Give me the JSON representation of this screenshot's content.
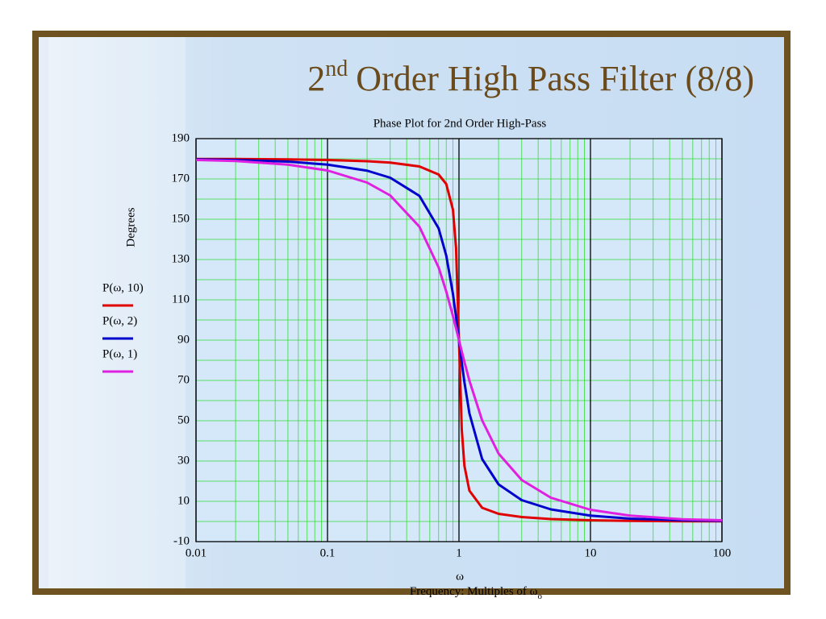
{
  "slide": {
    "title_base": "2",
    "title_sup": "nd",
    "title_rest": "Order High Pass Filter (8/8)"
  },
  "chart_data": {
    "type": "line",
    "title": "Phase Plot for 2nd Order High-Pass",
    "ylabel": "Degrees",
    "xlabel_symbol": "ω",
    "xlabel": "Frequency: Multiples of ω",
    "xlabel_sub": "o",
    "x": [
      0.01,
      0.02,
      0.05,
      0.1,
      0.2,
      0.3,
      0.5,
      0.7,
      0.8,
      0.9,
      0.95,
      1,
      1.05,
      1.1,
      1.2,
      1.5,
      2,
      3,
      5,
      10,
      20,
      50,
      100
    ],
    "series": [
      {
        "name": "P(ω, 10)",
        "color": "#e00000",
        "values": [
          179.9,
          179.9,
          179.7,
          179.4,
          178.8,
          178.1,
          176.2,
          172.2,
          167.5,
          154.7,
          135.7,
          90,
          45.7,
          27.6,
          15.3,
          6.8,
          3.8,
          2.2,
          1.2,
          0.6,
          0.3,
          0.1,
          0.1
        ]
      },
      {
        "name": "P(ω, 2)",
        "color": "#0000cc",
        "values": [
          179.7,
          179.4,
          178.6,
          177.1,
          174.1,
          170.6,
          161.6,
          145.5,
          132.0,
          112.9,
          101.6,
          90,
          79.0,
          69.1,
          53.7,
          31.0,
          18.4,
          10.6,
          6.0,
          2.9,
          1.4,
          0.6,
          0.3
        ]
      },
      {
        "name": "P(ω, 1)",
        "color": "#e020e0",
        "values": [
          179.4,
          178.9,
          177.1,
          174.2,
          168.2,
          161.8,
          146.3,
          126.1,
          114.2,
          101.9,
          95.9,
          90,
          84.4,
          79.2,
          69.9,
          50.2,
          33.7,
          20.6,
          11.8,
          5.8,
          2.9,
          1.1,
          0.6
        ]
      }
    ],
    "xscale": "log",
    "xlim": [
      0.01,
      100
    ],
    "xticks": [
      0.01,
      0.1,
      1,
      10,
      100
    ],
    "ylim": [
      -10,
      190
    ],
    "yticks": [
      -10,
      10,
      30,
      50,
      70,
      90,
      110,
      130,
      150,
      170,
      190
    ],
    "grid": true,
    "legend": "left"
  }
}
